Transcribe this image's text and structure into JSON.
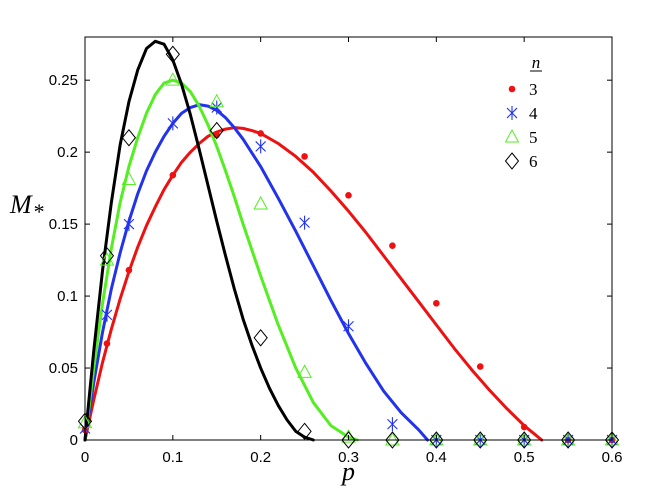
{
  "chart_data": {
    "type": "scatter",
    "title": "",
    "xlabel": "p",
    "ylabel": "M",
    "ylabel_subscript": "*",
    "xlim": [
      0,
      0.6
    ],
    "ylim": [
      0,
      0.28
    ],
    "xticks": [
      0,
      0.1,
      0.2,
      0.3,
      0.4,
      0.5,
      0.6
    ],
    "xtick_labels": [
      "0",
      "0.1",
      "0.2",
      "0.3",
      "0.4",
      "0.5",
      "0.6"
    ],
    "yticks": [
      0,
      0.05,
      0.1,
      0.15,
      0.2,
      0.25
    ],
    "ytick_labels": [
      "0",
      "0.05",
      "0.1",
      "0.15",
      "0.2",
      "0.25"
    ],
    "grid": false,
    "legend": {
      "title": "n",
      "position": "top-right",
      "entries": [
        "3",
        "4",
        "5",
        "6"
      ]
    },
    "series": [
      {
        "name": "3",
        "marker": "dot",
        "color": "#ee1111",
        "points": [
          [
            0,
            0.007
          ],
          [
            0.025,
            0.067
          ],
          [
            0.05,
            0.118
          ],
          [
            0.1,
            0.184
          ],
          [
            0.15,
            0.212
          ],
          [
            0.2,
            0.213
          ],
          [
            0.25,
            0.197
          ],
          [
            0.3,
            0.17
          ],
          [
            0.35,
            0.135
          ],
          [
            0.4,
            0.095
          ],
          [
            0.45,
            0.051
          ],
          [
            0.5,
            0.009
          ],
          [
            0.55,
            0
          ],
          [
            0.6,
            0
          ]
        ],
        "curve": [
          [
            0,
            0
          ],
          [
            0.01,
            0.028
          ],
          [
            0.02,
            0.054
          ],
          [
            0.03,
            0.077
          ],
          [
            0.04,
            0.098
          ],
          [
            0.05,
            0.117
          ],
          [
            0.06,
            0.134
          ],
          [
            0.07,
            0.149
          ],
          [
            0.08,
            0.162
          ],
          [
            0.09,
            0.174
          ],
          [
            0.1,
            0.184
          ],
          [
            0.11,
            0.193
          ],
          [
            0.12,
            0.2
          ],
          [
            0.13,
            0.206
          ],
          [
            0.14,
            0.211
          ],
          [
            0.15,
            0.214
          ],
          [
            0.16,
            0.216
          ],
          [
            0.17,
            0.217
          ],
          [
            0.18,
            0.2165
          ],
          [
            0.19,
            0.215
          ],
          [
            0.2,
            0.213
          ],
          [
            0.22,
            0.206
          ],
          [
            0.24,
            0.197
          ],
          [
            0.26,
            0.186
          ],
          [
            0.28,
            0.173
          ],
          [
            0.3,
            0.159
          ],
          [
            0.32,
            0.144
          ],
          [
            0.34,
            0.128
          ],
          [
            0.36,
            0.112
          ],
          [
            0.38,
            0.096
          ],
          [
            0.4,
            0.08
          ],
          [
            0.42,
            0.064
          ],
          [
            0.44,
            0.049
          ],
          [
            0.46,
            0.035
          ],
          [
            0.48,
            0.022
          ],
          [
            0.5,
            0.01
          ],
          [
            0.51,
            0.005
          ],
          [
            0.52,
            0
          ]
        ]
      },
      {
        "name": "4",
        "marker": "asterisk",
        "color": "#2233ee",
        "points": [
          [
            0,
            0.008
          ],
          [
            0.025,
            0.087
          ],
          [
            0.05,
            0.15
          ],
          [
            0.1,
            0.22
          ],
          [
            0.15,
            0.231
          ],
          [
            0.2,
            0.204
          ],
          [
            0.25,
            0.151
          ],
          [
            0.3,
            0.079
          ],
          [
            0.35,
            0.011
          ],
          [
            0.4,
            0
          ],
          [
            0.45,
            0
          ],
          [
            0.5,
            0
          ],
          [
            0.55,
            0
          ],
          [
            0.6,
            0
          ]
        ],
        "curve": [
          [
            0,
            0
          ],
          [
            0.01,
            0.04
          ],
          [
            0.02,
            0.075
          ],
          [
            0.03,
            0.105
          ],
          [
            0.04,
            0.13
          ],
          [
            0.05,
            0.152
          ],
          [
            0.06,
            0.171
          ],
          [
            0.07,
            0.187
          ],
          [
            0.08,
            0.2
          ],
          [
            0.09,
            0.211
          ],
          [
            0.1,
            0.22
          ],
          [
            0.11,
            0.227
          ],
          [
            0.12,
            0.231
          ],
          [
            0.13,
            0.233
          ],
          [
            0.14,
            0.232
          ],
          [
            0.15,
            0.229
          ],
          [
            0.16,
            0.224
          ],
          [
            0.17,
            0.217
          ],
          [
            0.18,
            0.209
          ],
          [
            0.2,
            0.19
          ],
          [
            0.22,
            0.168
          ],
          [
            0.24,
            0.145
          ],
          [
            0.26,
            0.121
          ],
          [
            0.28,
            0.097
          ],
          [
            0.3,
            0.074
          ],
          [
            0.32,
            0.053
          ],
          [
            0.34,
            0.034
          ],
          [
            0.36,
            0.019
          ],
          [
            0.38,
            0.007
          ],
          [
            0.39,
            0
          ]
        ]
      },
      {
        "name": "5",
        "marker": "triangle",
        "color": "#55ee22",
        "points": [
          [
            0,
            0.012
          ],
          [
            0.025,
            0.125
          ],
          [
            0.05,
            0.181
          ],
          [
            0.1,
            0.25
          ],
          [
            0.15,
            0.235
          ],
          [
            0.2,
            0.164
          ],
          [
            0.25,
            0.047
          ],
          [
            0.3,
            0.002
          ],
          [
            0.35,
            0
          ],
          [
            0.4,
            0
          ],
          [
            0.45,
            0
          ],
          [
            0.5,
            0
          ],
          [
            0.55,
            0
          ],
          [
            0.6,
            0
          ]
        ],
        "curve": [
          [
            0,
            0
          ],
          [
            0.01,
            0.05
          ],
          [
            0.02,
            0.095
          ],
          [
            0.03,
            0.133
          ],
          [
            0.04,
            0.165
          ],
          [
            0.05,
            0.19
          ],
          [
            0.06,
            0.21
          ],
          [
            0.07,
            0.227
          ],
          [
            0.08,
            0.24
          ],
          [
            0.09,
            0.248
          ],
          [
            0.1,
            0.25
          ],
          [
            0.11,
            0.248
          ],
          [
            0.12,
            0.242
          ],
          [
            0.13,
            0.232
          ],
          [
            0.14,
            0.219
          ],
          [
            0.15,
            0.204
          ],
          [
            0.16,
            0.187
          ],
          [
            0.17,
            0.169
          ],
          [
            0.18,
            0.15
          ],
          [
            0.2,
            0.114
          ],
          [
            0.22,
            0.08
          ],
          [
            0.24,
            0.05
          ],
          [
            0.26,
            0.026
          ],
          [
            0.28,
            0.01
          ],
          [
            0.3,
            0.002
          ],
          [
            0.31,
            0
          ]
        ]
      },
      {
        "name": "6",
        "marker": "diamond",
        "color": "#000000",
        "points": [
          [
            0,
            0.013
          ],
          [
            0.025,
            0.128
          ],
          [
            0.05,
            0.21
          ],
          [
            0.1,
            0.268
          ],
          [
            0.15,
            0.215
          ],
          [
            0.2,
            0.071
          ],
          [
            0.25,
            0.006
          ],
          [
            0.3,
            0
          ],
          [
            0.35,
            0
          ],
          [
            0.4,
            0
          ],
          [
            0.45,
            0
          ],
          [
            0.5,
            0
          ],
          [
            0.55,
            0
          ],
          [
            0.6,
            0
          ]
        ],
        "curve": [
          [
            0,
            0
          ],
          [
            0.01,
            0.062
          ],
          [
            0.02,
            0.118
          ],
          [
            0.03,
            0.165
          ],
          [
            0.04,
            0.205
          ],
          [
            0.05,
            0.235
          ],
          [
            0.06,
            0.257
          ],
          [
            0.07,
            0.272
          ],
          [
            0.08,
            0.277
          ],
          [
            0.09,
            0.275
          ],
          [
            0.1,
            0.264
          ],
          [
            0.11,
            0.247
          ],
          [
            0.12,
            0.226
          ],
          [
            0.13,
            0.202
          ],
          [
            0.14,
            0.177
          ],
          [
            0.15,
            0.152
          ],
          [
            0.16,
            0.128
          ],
          [
            0.17,
            0.105
          ],
          [
            0.18,
            0.084
          ],
          [
            0.19,
            0.066
          ],
          [
            0.2,
            0.05
          ],
          [
            0.21,
            0.036
          ],
          [
            0.22,
            0.024
          ],
          [
            0.23,
            0.014
          ],
          [
            0.24,
            0.006
          ],
          [
            0.25,
            0.002
          ],
          [
            0.26,
            0
          ]
        ]
      }
    ]
  }
}
